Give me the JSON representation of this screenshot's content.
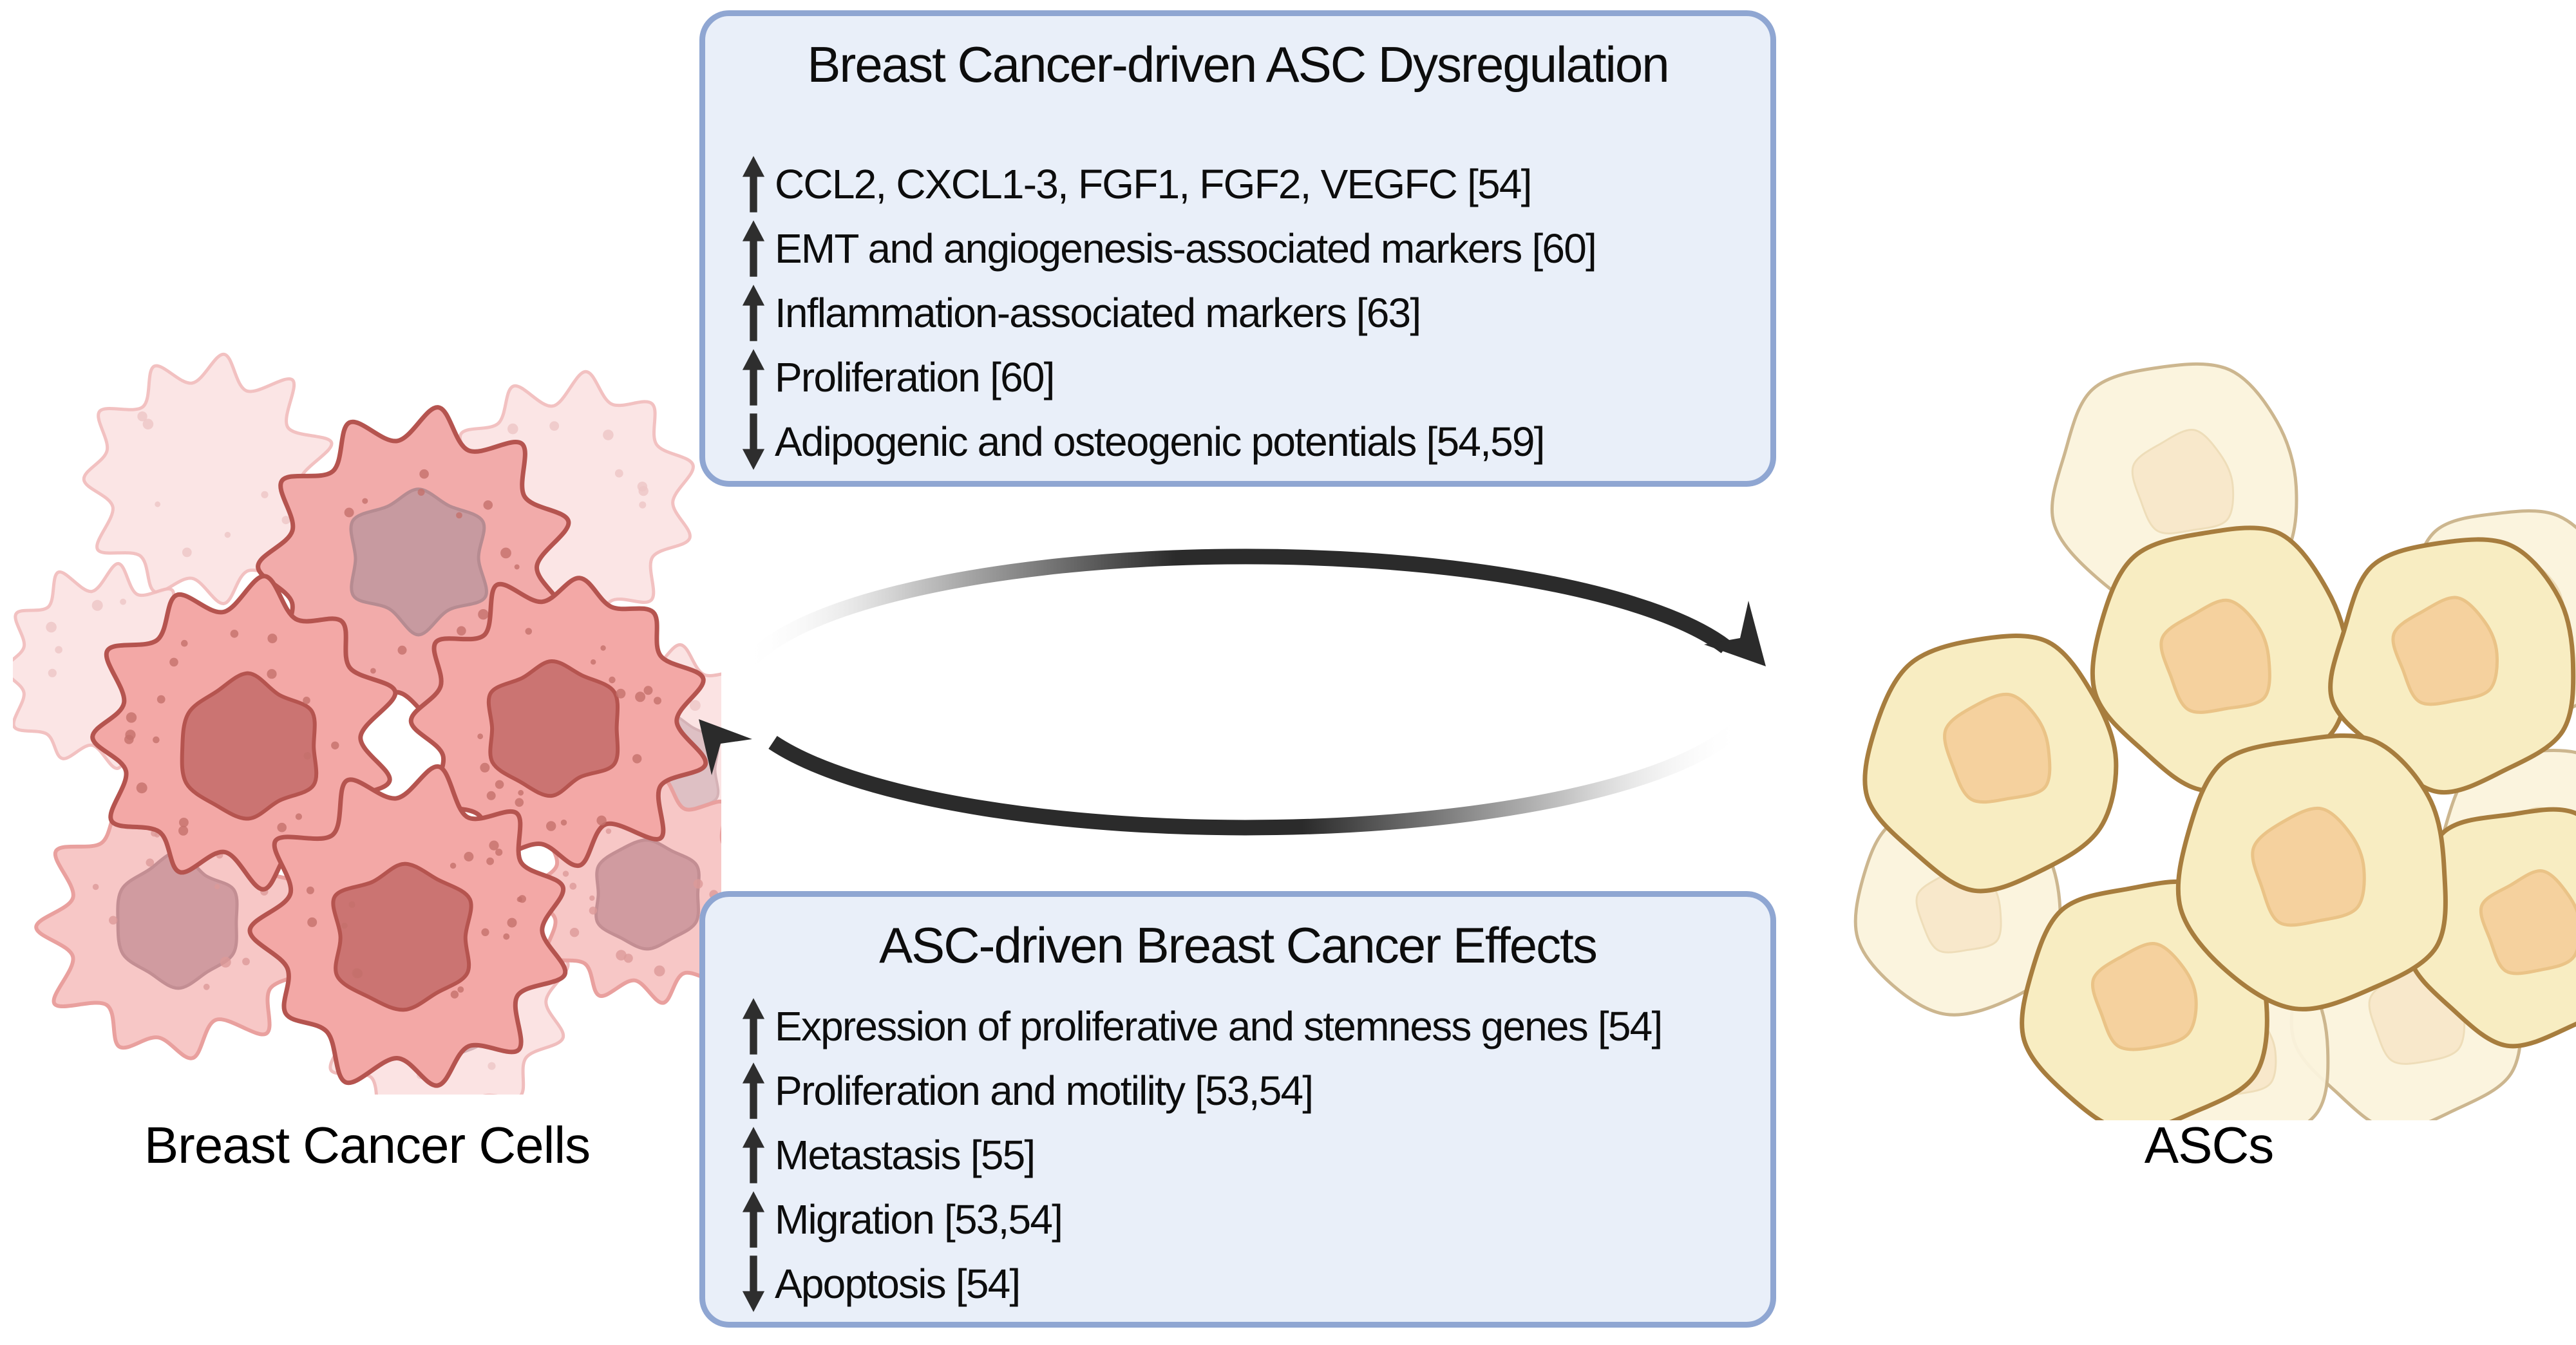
{
  "top_box": {
    "title": "Breast Cancer-driven ASC Dysregulation",
    "items": [
      {
        "direction": "up",
        "text": "CCL2, CXCL1-3, FGF1, FGF2, VEGFC [54]"
      },
      {
        "direction": "up",
        "text": "EMT and angiogenesis-associated markers [60]"
      },
      {
        "direction": "up",
        "text": "Inflammation-associated markers [63]"
      },
      {
        "direction": "up",
        "text": "Proliferation [60]"
      },
      {
        "direction": "down",
        "text": "Adipogenic and osteogenic potentials [54,59]"
      }
    ]
  },
  "bottom_box": {
    "title": "ASC-driven Breast Cancer Effects",
    "items": [
      {
        "direction": "up",
        "text": "Expression of proliferative and stemness genes [54]"
      },
      {
        "direction": "up",
        "text": "Proliferation and motility [53,54]"
      },
      {
        "direction": "up",
        "text": "Metastasis [55]"
      },
      {
        "direction": "up",
        "text": "Migration [53,54]"
      },
      {
        "direction": "down",
        "text": "Apoptosis [54]"
      }
    ]
  },
  "labels": {
    "left_cells": "Breast Cancer Cells",
    "right_cells": "ASCs"
  },
  "icons": {
    "up_arrow": "increase-arrow",
    "down_arrow": "decrease-arrow",
    "cycle_arrows": "bidirectional-crosstalk-arrows"
  },
  "colors": {
    "box_fill": "#e9eff9",
    "box_border": "#8fa6d2",
    "text": "#0d0d0d",
    "list_arrow": "#2e2e2e",
    "cycle_arrow": "#2b2b2b",
    "cancer_cell_fill": "#f3a8a6",
    "cancer_cell_stroke": "#b5544f",
    "cancer_nucleus_fill": "#cb7472",
    "asc_cell_fill": "#f8edc2",
    "asc_cell_stroke": "#a77d3e",
    "asc_nucleus_fill": "#f5d19e"
  }
}
